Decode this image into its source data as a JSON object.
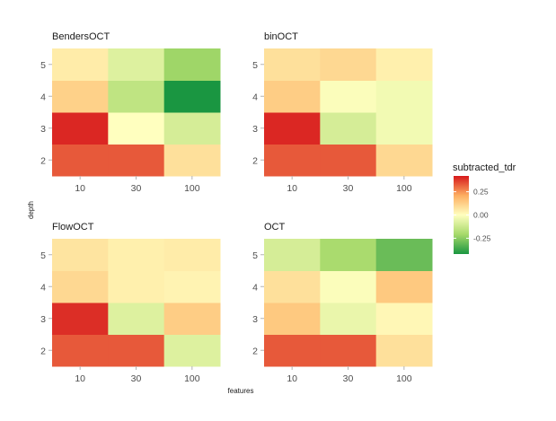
{
  "chart_data": {
    "type": "heatmap",
    "xlabel": "features",
    "ylabel": "depth",
    "x_categories": [
      "10",
      "30",
      "100"
    ],
    "y_categories": [
      "2",
      "3",
      "4",
      "5"
    ],
    "color_scale": {
      "name": "subtracted_tdr",
      "min": -0.42,
      "max": 0.42,
      "breaks": [
        0.25,
        0.0,
        -0.25
      ],
      "break_labels": [
        "0.25",
        "0.00",
        "-0.25"
      ],
      "low_color": "#1a9641",
      "mid_color": "#ffffbf",
      "high_color": "#d7191c"
    },
    "facets": [
      {
        "title": "BendersOCT",
        "values": {
          "5": [
            0.05,
            -0.08,
            -0.22
          ],
          "4": [
            0.12,
            -0.15,
            -0.42
          ],
          "3": [
            0.4,
            0.0,
            -0.1
          ],
          "2": [
            0.33,
            0.33,
            0.08
          ]
        }
      },
      {
        "title": "binOCT",
        "values": {
          "5": [
            0.08,
            0.1,
            0.04
          ],
          "4": [
            0.13,
            -0.01,
            -0.03
          ],
          "3": [
            0.4,
            -0.1,
            -0.03
          ],
          "2": [
            0.33,
            0.33,
            0.1
          ]
        }
      },
      {
        "title": "FlowOCT",
        "values": {
          "5": [
            0.07,
            0.04,
            0.05
          ],
          "4": [
            0.1,
            0.04,
            0.03
          ],
          "3": [
            0.39,
            -0.08,
            0.13
          ],
          "2": [
            0.33,
            0.33,
            -0.08
          ]
        }
      },
      {
        "title": "OCT",
        "values": {
          "5": [
            -0.1,
            -0.2,
            -0.3
          ],
          "4": [
            0.08,
            -0.01,
            0.14
          ],
          "3": [
            0.14,
            -0.05,
            0.02
          ],
          "2": [
            0.33,
            0.33,
            0.08
          ]
        }
      }
    ]
  }
}
